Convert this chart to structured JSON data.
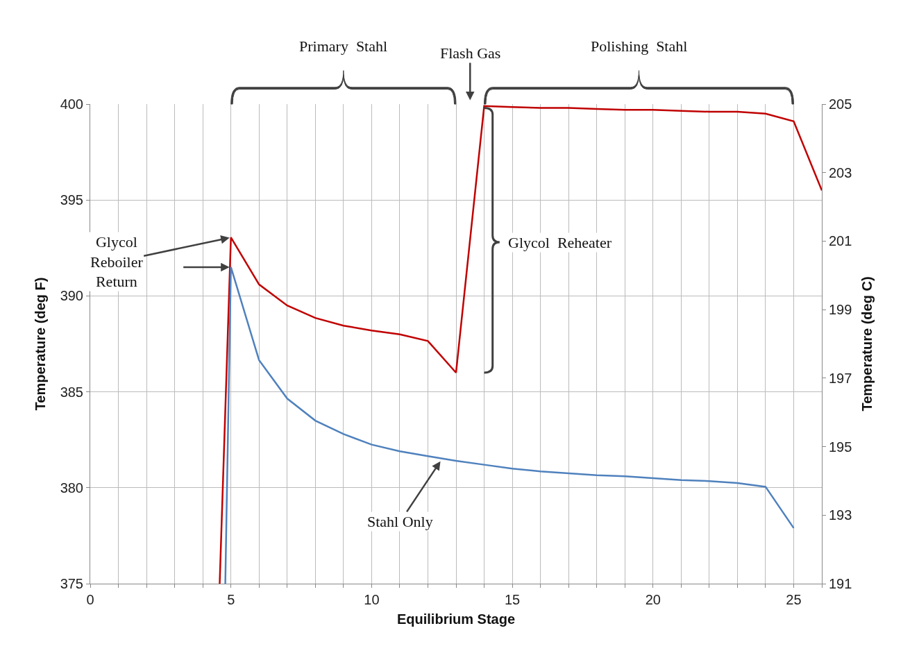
{
  "chart_data": {
    "type": "line",
    "xlabel": "Equilibrium Stage",
    "ylabel": "Temperature (deg F)",
    "y2label": "Temperature (deg C)",
    "xlim": [
      0,
      26
    ],
    "xticks": [
      0,
      {
        "value": 1,
        "label": null
      },
      {
        "value": 2,
        "label": null
      },
      {
        "value": 3,
        "label": null
      },
      {
        "value": 4,
        "label": null
      },
      5,
      {
        "value": 6,
        "label": null
      },
      {
        "value": 7,
        "label": null
      },
      {
        "value": 8,
        "label": null
      },
      {
        "value": 9,
        "label": null
      },
      10,
      {
        "value": 11,
        "label": null
      },
      {
        "value": 12,
        "label": null
      },
      {
        "value": 13,
        "label": null
      },
      {
        "value": 14,
        "label": null
      },
      15,
      {
        "value": 16,
        "label": null
      },
      {
        "value": 17,
        "label": null
      },
      {
        "value": 18,
        "label": null
      },
      {
        "value": 19,
        "label": null
      },
      20,
      {
        "value": 21,
        "label": null
      },
      {
        "value": 22,
        "label": null
      },
      {
        "value": 23,
        "label": null
      },
      {
        "value": 24,
        "label": null
      },
      25,
      {
        "value": 26,
        "label": null
      }
    ],
    "ylim": [
      375,
      400
    ],
    "yticks": [
      375,
      380,
      385,
      390,
      395,
      400
    ],
    "y2lim": [
      191,
      205
    ],
    "y2ticks": [
      191,
      193,
      195,
      197,
      199,
      201,
      203,
      205
    ],
    "grid": true,
    "marker": "none",
    "line_style": "solid",
    "series": [
      {
        "color": "#c00000",
        "x": [
          4.6,
          5,
          6,
          7,
          8,
          9,
          10,
          11,
          12,
          13,
          14,
          15,
          16,
          17,
          18,
          19,
          20,
          21,
          22,
          23,
          24,
          25,
          26
        ],
        "values": [
          375,
          393.05,
          390.6,
          389.5,
          388.85,
          388.45,
          388.2,
          388.0,
          387.65,
          386.0,
          399.9,
          399.85,
          399.8,
          399.8,
          399.75,
          399.7,
          399.7,
          399.65,
          399.6,
          399.6,
          399.5,
          399.1,
          395.5
        ]
      },
      {
        "color": "#4f81bd",
        "x": [
          4.8,
          5,
          6,
          7,
          8,
          9,
          10,
          11,
          12,
          13,
          14,
          15,
          16,
          17,
          18,
          19,
          20,
          21,
          22,
          23,
          24,
          25
        ],
        "values": [
          375,
          391.5,
          386.65,
          384.65,
          383.5,
          382.8,
          382.25,
          381.9,
          381.65,
          381.4,
          381.2,
          381.0,
          380.85,
          380.75,
          380.65,
          380.6,
          380.5,
          380.4,
          380.35,
          380.25,
          380.05,
          377.9
        ]
      }
    ],
    "annotations": [
      "Primary  Stahl",
      "Flash Gas",
      "Polishing  Stahl",
      {
        "text": "Glycol\nReboiler\nReturn",
        "x": 5,
        "y": 393.05
      },
      "Glycol  Reheater",
      {
        "text": "Stahl Only",
        "x": 12.5,
        "y": 381.5
      }
    ]
  }
}
